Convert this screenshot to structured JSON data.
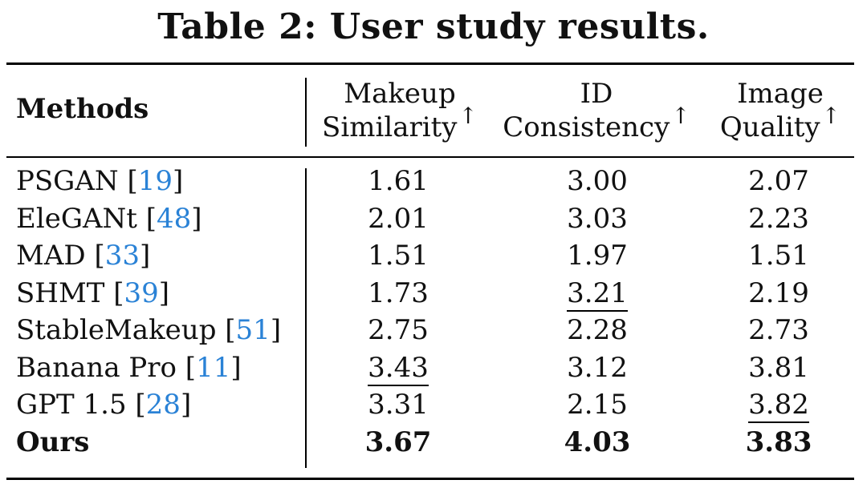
{
  "caption": "Table 2: User study results.",
  "header": {
    "methods": "Methods",
    "col1_line1": "Makeup",
    "col1_line2": "Similarity",
    "col2_line1": "ID",
    "col2_line2": "Consistency",
    "col3_line1": "Image",
    "col3_line2": "Quality",
    "arrow": "↑"
  },
  "rows": [
    {
      "method": "PSGAN",
      "ref": "19",
      "v1": "1.61",
      "v2": "3.00",
      "v3": "2.07"
    },
    {
      "method": "EleGANt",
      "ref": "48",
      "v1": "2.01",
      "v2": "3.03",
      "v3": "2.23"
    },
    {
      "method": "MAD",
      "ref": "33",
      "v1": "1.51",
      "v2": "1.97",
      "v3": "1.51"
    },
    {
      "method": "SHMT",
      "ref": "39",
      "v1": "1.73",
      "v2": "3.21",
      "v3": "2.19"
    },
    {
      "method": "StableMakeup",
      "ref": "51",
      "v1": "2.75",
      "v2": "2.28",
      "v3": "2.73"
    },
    {
      "method": "Banana Pro",
      "ref": "11",
      "v1": "3.43",
      "v2": "3.12",
      "v3": "3.81"
    },
    {
      "method": "GPT 1.5",
      "ref": "28",
      "v1": "3.31",
      "v2": "2.15",
      "v3": "3.82"
    },
    {
      "method": "Ours",
      "ref": "",
      "v1": "3.67",
      "v2": "4.03",
      "v3": "3.83"
    }
  ],
  "underlined": [
    "3.21",
    "3.43",
    "3.82"
  ],
  "bold_row": "Ours",
  "colors": {
    "reference_link": "#2a82d6",
    "text": "#111111"
  }
}
